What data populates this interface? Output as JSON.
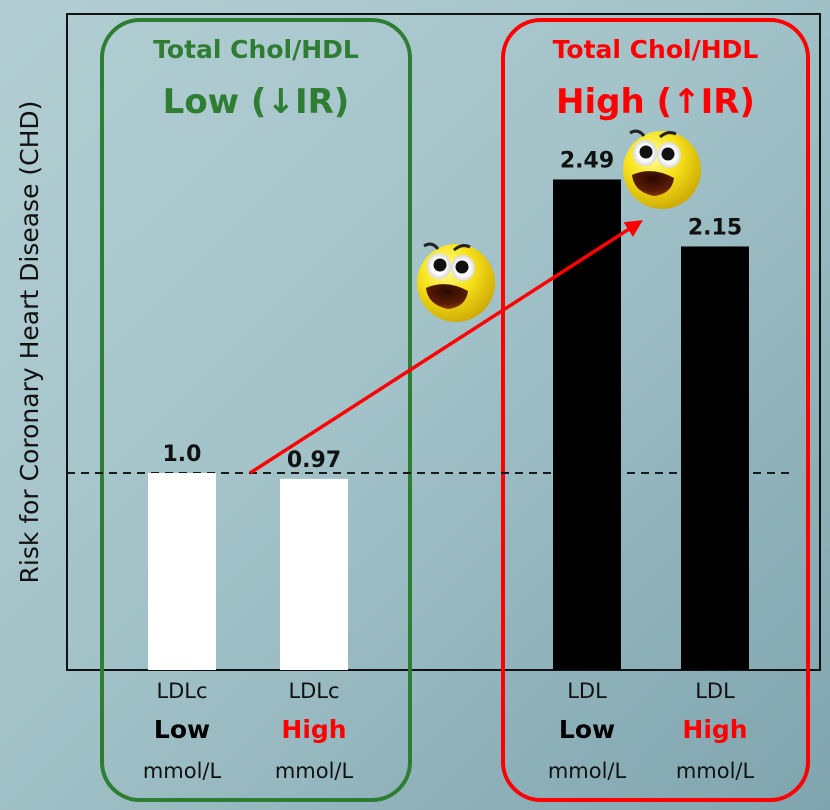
{
  "chart_data": {
    "type": "bar",
    "title": "",
    "ylabel": "Risk for Coronary Heart Disease (CHD)",
    "xlabel": "",
    "ylim": [
      0,
      3.33
    ],
    "reference_line": {
      "value": 1.0,
      "style": "dashed"
    },
    "groups": [
      {
        "name": "Total Chol/HDL Low",
        "header_line1": "Total Chol/HDL",
        "header_line2": "Low (↓IR)",
        "color": "#2e7d32"
      },
      {
        "name": "Total Chol/HDL High",
        "header_line1": "Total Chol/HDL",
        "header_line2": "High (↑IR)",
        "color": "#ff0000"
      }
    ],
    "categories": [
      {
        "line1": "LDLc",
        "line2": "Low",
        "line2_color": "#000000",
        "line3": "mmol/L",
        "group": 0
      },
      {
        "line1": "LDLc",
        "line2": "High",
        "line2_color": "#ff0000",
        "line3": "mmol/L",
        "group": 0
      },
      {
        "line1": "LDL",
        "line2": "Low",
        "line2_color": "#000000",
        "line3": "mmol/L",
        "group": 1
      },
      {
        "line1": "LDL",
        "line2": "High",
        "line2_color": "#ff0000",
        "line3": "mmol/L",
        "group": 1
      }
    ],
    "values": [
      1.0,
      0.97,
      2.49,
      2.15
    ],
    "value_labels": [
      "1.0",
      "0.97",
      "2.49",
      "2.15"
    ],
    "bar_colors": [
      "#ffffff",
      "#ffffff",
      "#000000",
      "#000000"
    ],
    "annotations": [
      {
        "type": "arrow",
        "from_category": 1,
        "to_category": 2,
        "color": "#ff0000",
        "meaning": "increase in risk"
      },
      {
        "type": "icon",
        "name": "shocked-face-emoji"
      },
      {
        "type": "icon",
        "name": "shocked-face-emoji"
      }
    ]
  }
}
